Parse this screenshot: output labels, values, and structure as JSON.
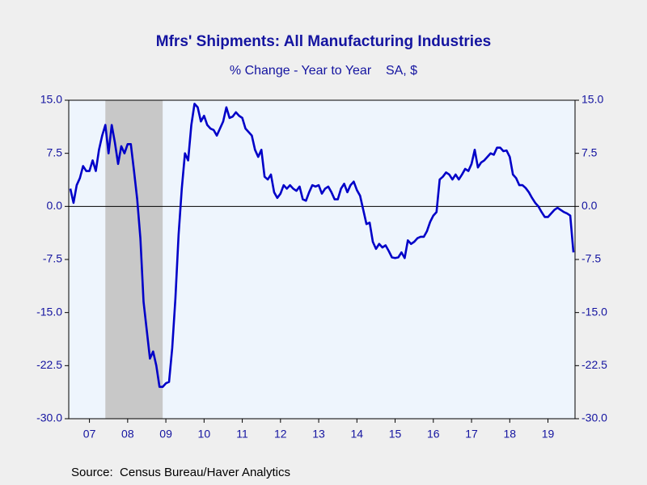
{
  "chart_data": {
    "type": "line",
    "title": "Mfrs' Shipments: All Manufacturing Industries",
    "subtitle": "% Change - Year to Year    SA, $",
    "source": "Source:  Census Bureau/Haver Analytics",
    "categories": [
      null,
      null,
      null,
      null,
      null,
      null,
      "07",
      null,
      null,
      null,
      null,
      null,
      null,
      null,
      null,
      null,
      null,
      null,
      "08",
      null,
      null,
      null,
      null,
      null,
      null,
      null,
      null,
      null,
      null,
      null,
      "09",
      null,
      null,
      null,
      null,
      null,
      null,
      null,
      null,
      null,
      null,
      null,
      "10",
      null,
      null,
      null,
      null,
      null,
      null,
      null,
      null,
      null,
      null,
      null,
      "11",
      null,
      null,
      null,
      null,
      null,
      null,
      null,
      null,
      null,
      null,
      null,
      "12",
      null,
      null,
      null,
      null,
      null,
      null,
      null,
      null,
      null,
      null,
      null,
      "13",
      null,
      null,
      null,
      null,
      null,
      null,
      null,
      null,
      null,
      null,
      null,
      "14",
      null,
      null,
      null,
      null,
      null,
      null,
      null,
      null,
      null,
      null,
      null,
      "15",
      null,
      null,
      null,
      null,
      null,
      null,
      null,
      null,
      null,
      null,
      null,
      "16",
      null,
      null,
      null,
      null,
      null,
      null,
      null,
      null,
      null,
      null,
      null,
      "17",
      null,
      null,
      null,
      null,
      null,
      null,
      null,
      null,
      null,
      null,
      null,
      "18",
      null,
      null,
      null,
      null,
      null,
      null,
      null,
      null,
      null,
      null,
      null,
      "19",
      null,
      null,
      null,
      null,
      null,
      null,
      null,
      null
    ],
    "series": [
      {
        "color": "#0000c8",
        "values": [
          2.5,
          0.5,
          3,
          4,
          5.7,
          5,
          5,
          6.5,
          5,
          8,
          10,
          11.5,
          7.5,
          11.5,
          9,
          6,
          8.5,
          7.5,
          8.8,
          8.8,
          5,
          1,
          -4.5,
          -13.5,
          -17.5,
          -21.5,
          -20.5,
          -22.5,
          -25.5,
          -25.5,
          -25,
          -24.8,
          -20,
          -13,
          -4,
          2.5,
          7.5,
          6.5,
          11.5,
          14.5,
          14,
          12,
          12.8,
          11.5,
          11,
          10.8,
          10,
          11,
          12,
          14,
          12.5,
          12.7,
          13.3,
          12.8,
          12.5,
          11,
          10.5,
          10,
          8,
          7,
          8,
          4.2,
          3.8,
          4.5,
          2,
          1.2,
          1.8,
          3,
          2.5,
          3,
          2.5,
          2.2,
          2.8,
          1,
          0.8,
          2,
          3,
          2.8,
          3,
          1.8,
          2.5,
          2.8,
          2,
          1,
          1,
          2.5,
          3.2,
          2,
          3,
          3.5,
          2.3,
          1.5,
          -0.5,
          -2.5,
          -2.3,
          -5,
          -6,
          -5.3,
          -5.8,
          -5.5,
          -6.3,
          -7.2,
          -7.3,
          -7.2,
          -6.5,
          -7.3,
          -4.8,
          -5.3,
          -5,
          -4.5,
          -4.3,
          -4.3,
          -3.5,
          -2.2,
          -1.3,
          -0.8,
          3.8,
          4.2,
          4.8,
          4.5,
          3.8,
          4.5,
          3.8,
          4.5,
          5.3,
          5,
          6,
          8,
          5.5,
          6.2,
          6.5,
          7,
          7.5,
          7.3,
          8.3,
          8.3,
          7.8,
          7.9,
          7,
          4.5,
          4,
          3,
          3,
          2.6,
          2,
          1.2,
          0.5,
          0,
          -0.8,
          -1.5,
          -1.5,
          -1,
          -0.5,
          -0.2,
          -0.5,
          -0.8,
          -1,
          -1.3,
          -6.5
        ]
      }
    ],
    "shading": [
      [
        11,
        29
      ]
    ],
    "shading_color": "#c8c8c8",
    "ylim": [
      -30,
      15
    ],
    "yticks": [
      {
        "value": -30,
        "label": "-30.0"
      },
      {
        "value": -22.5,
        "label": "-22.5"
      },
      {
        "value": -15,
        "label": "-15.0"
      },
      {
        "value": -7.5,
        "label": "-7.5"
      },
      {
        "value": 0,
        "label": "0.0"
      },
      {
        "value": 7.5,
        "label": "7.5"
      },
      {
        "value": 15,
        "label": "15.0"
      }
    ],
    "zero_line": true
  }
}
